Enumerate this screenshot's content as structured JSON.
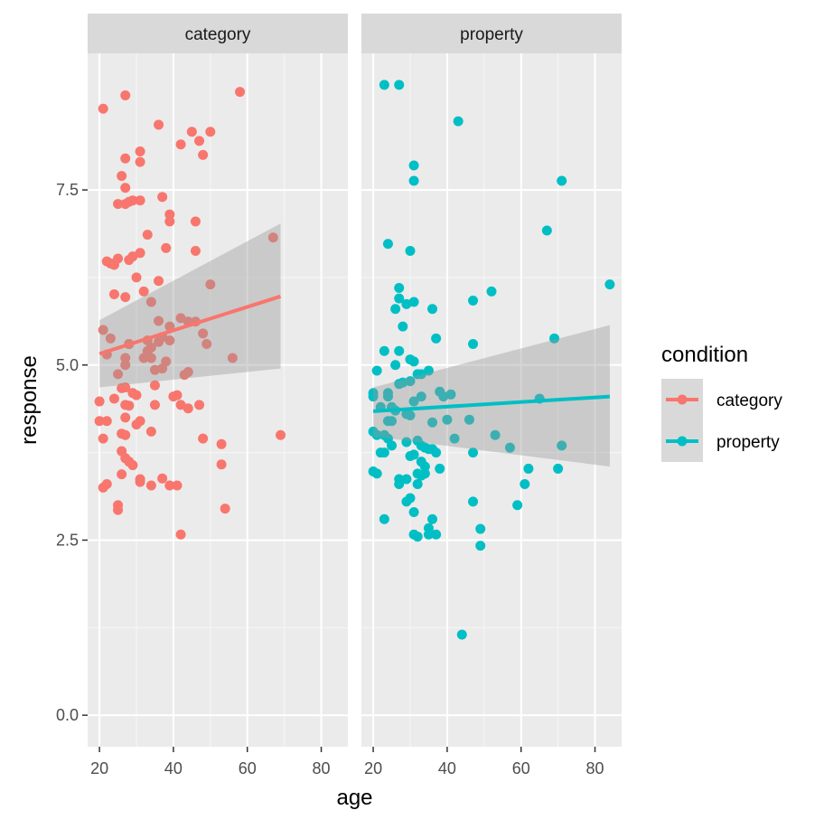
{
  "chart_data": {
    "type": "scatter",
    "title": "",
    "xlabel": "age",
    "ylabel": "response",
    "xlim": [
      16.8,
      87.2
    ],
    "ylim": [
      -0.45,
      9.45
    ],
    "x_ticks": [
      20,
      40,
      60,
      80
    ],
    "x_tick_labels": [
      "20",
      "40",
      "60",
      "80"
    ],
    "y_ticks": [
      0,
      2.5,
      5,
      7.5
    ],
    "y_tick_labels": [
      "0.0",
      "2.5",
      "5.0",
      "7.5"
    ],
    "grid": true,
    "legend": {
      "title": "condition",
      "position": "right"
    },
    "facets": [
      {
        "label": "category",
        "color": "#F8766D",
        "fit": {
          "x": [
            20,
            69
          ],
          "y": [
            5.16,
            5.98
          ],
          "lower": [
            4.68,
            4.95
          ],
          "upper": [
            5.64,
            7.02
          ]
        },
        "points": [
          [
            21,
            8.66
          ],
          [
            27,
            8.85
          ],
          [
            58,
            8.9
          ],
          [
            36,
            8.43
          ],
          [
            45,
            8.33
          ],
          [
            50,
            8.33
          ],
          [
            47,
            8.2
          ],
          [
            42,
            8.15
          ],
          [
            31,
            8.05
          ],
          [
            48,
            8.0
          ],
          [
            31,
            7.9
          ],
          [
            27,
            7.95
          ],
          [
            26,
            7.7
          ],
          [
            27,
            7.53
          ],
          [
            29,
            7.35
          ],
          [
            28,
            7.33
          ],
          [
            31,
            7.35
          ],
          [
            25,
            7.3
          ],
          [
            27,
            7.3
          ],
          [
            37,
            7.4
          ],
          [
            39,
            7.15
          ],
          [
            39,
            7.05
          ],
          [
            46,
            7.05
          ],
          [
            33,
            6.86
          ],
          [
            38,
            6.67
          ],
          [
            46,
            6.63
          ],
          [
            67,
            6.82
          ],
          [
            22,
            6.48
          ],
          [
            23,
            6.45
          ],
          [
            25,
            6.52
          ],
          [
            24,
            6.43
          ],
          [
            28,
            6.5
          ],
          [
            29,
            6.55
          ],
          [
            31,
            6.6
          ],
          [
            30,
            6.25
          ],
          [
            36,
            6.2
          ],
          [
            50,
            6.15
          ],
          [
            32,
            6.05
          ],
          [
            24,
            6.01
          ],
          [
            27,
            5.97
          ],
          [
            34,
            5.9
          ],
          [
            36,
            5.63
          ],
          [
            39,
            5.55
          ],
          [
            42,
            5.67
          ],
          [
            44,
            5.62
          ],
          [
            46,
            5.62
          ],
          [
            48,
            5.45
          ],
          [
            49,
            5.3
          ],
          [
            21,
            5.5
          ],
          [
            23,
            5.38
          ],
          [
            28,
            5.3
          ],
          [
            33,
            5.35
          ],
          [
            34,
            5.25
          ],
          [
            36,
            5.33
          ],
          [
            37,
            5.4
          ],
          [
            39,
            5.35
          ],
          [
            33,
            5.2
          ],
          [
            22,
            5.15
          ],
          [
            27,
            5.1
          ],
          [
            27,
            5.0
          ],
          [
            32,
            5.1
          ],
          [
            34,
            5.1
          ],
          [
            38,
            5.05
          ],
          [
            37,
            4.95
          ],
          [
            35,
            4.93
          ],
          [
            44,
            4.9
          ],
          [
            43,
            4.86
          ],
          [
            25,
            4.87
          ],
          [
            56,
            5.1
          ],
          [
            28,
            5.3
          ],
          [
            27,
            4.68
          ],
          [
            26,
            4.67
          ],
          [
            29,
            4.6
          ],
          [
            35,
            4.71
          ],
          [
            30,
            4.57
          ],
          [
            24,
            4.52
          ],
          [
            20,
            4.48
          ],
          [
            28,
            4.42
          ],
          [
            27,
            4.43
          ],
          [
            35,
            4.43
          ],
          [
            42,
            4.43
          ],
          [
            44,
            4.38
          ],
          [
            47,
            4.43
          ],
          [
            40,
            4.55
          ],
          [
            41,
            4.57
          ],
          [
            27,
            4.25
          ],
          [
            31,
            4.2
          ],
          [
            30,
            4.15
          ],
          [
            22,
            4.2
          ],
          [
            20,
            4.2
          ],
          [
            26,
            4.02
          ],
          [
            27,
            4.0
          ],
          [
            34,
            4.05
          ],
          [
            69,
            4.0
          ],
          [
            48,
            3.95
          ],
          [
            21,
            3.95
          ],
          [
            53,
            3.87
          ],
          [
            26,
            3.77
          ],
          [
            27,
            3.67
          ],
          [
            28,
            3.62
          ],
          [
            29,
            3.57
          ],
          [
            53,
            3.58
          ],
          [
            26,
            3.44
          ],
          [
            31,
            3.37
          ],
          [
            31,
            3.33
          ],
          [
            37,
            3.38
          ],
          [
            34,
            3.28
          ],
          [
            39,
            3.28
          ],
          [
            41,
            3.28
          ],
          [
            22,
            3.3
          ],
          [
            21,
            3.25
          ],
          [
            25,
            3.0
          ],
          [
            25,
            2.93
          ],
          [
            54,
            2.95
          ],
          [
            42,
            2.58
          ]
        ]
      },
      {
        "label": "property",
        "color": "#00BFC4",
        "fit": {
          "x": [
            20,
            84
          ],
          "y": [
            4.34,
            4.55
          ],
          "lower": [
            3.98,
            3.55
          ],
          "upper": [
            4.68,
            5.57
          ]
        },
        "points": [
          [
            23,
            9.0
          ],
          [
            27,
            9.0
          ],
          [
            43,
            8.48
          ],
          [
            31,
            7.85
          ],
          [
            31,
            7.63
          ],
          [
            71,
            7.63
          ],
          [
            24,
            6.73
          ],
          [
            67,
            6.92
          ],
          [
            30,
            6.63
          ],
          [
            84,
            6.15
          ],
          [
            27,
            6.1
          ],
          [
            52,
            6.05
          ],
          [
            27,
            5.95
          ],
          [
            31,
            5.9
          ],
          [
            29,
            5.87
          ],
          [
            47,
            5.92
          ],
          [
            26,
            5.8
          ],
          [
            36,
            5.8
          ],
          [
            28,
            5.55
          ],
          [
            37,
            5.38
          ],
          [
            69,
            5.38
          ],
          [
            47,
            5.3
          ],
          [
            27,
            5.2
          ],
          [
            23,
            5.2
          ],
          [
            30,
            5.08
          ],
          [
            31,
            5.05
          ],
          [
            26,
            5.0
          ],
          [
            35,
            4.92
          ],
          [
            21,
            4.92
          ],
          [
            33,
            4.87
          ],
          [
            32,
            4.87
          ],
          [
            30,
            4.77
          ],
          [
            28,
            4.75
          ],
          [
            27,
            4.73
          ],
          [
            24,
            4.6
          ],
          [
            20,
            4.6
          ],
          [
            20,
            4.55
          ],
          [
            24,
            4.55
          ],
          [
            31,
            4.48
          ],
          [
            33,
            4.55
          ],
          [
            38,
            4.62
          ],
          [
            41,
            4.58
          ],
          [
            39,
            4.55
          ],
          [
            65,
            4.52
          ],
          [
            22,
            4.4
          ],
          [
            25,
            4.4
          ],
          [
            26,
            4.35
          ],
          [
            29,
            4.3
          ],
          [
            30,
            4.28
          ],
          [
            36,
            4.18
          ],
          [
            40,
            4.22
          ],
          [
            46,
            4.22
          ],
          [
            25,
            4.2
          ],
          [
            24,
            4.2
          ],
          [
            20,
            4.05
          ],
          [
            21,
            4.0
          ],
          [
            23,
            4.0
          ],
          [
            25,
            3.85
          ],
          [
            24,
            3.95
          ],
          [
            29,
            3.9
          ],
          [
            32,
            3.92
          ],
          [
            42,
            3.95
          ],
          [
            53,
            4.0
          ],
          [
            33,
            3.85
          ],
          [
            35,
            3.8
          ],
          [
            34,
            3.82
          ],
          [
            36,
            3.8
          ],
          [
            37,
            3.75
          ],
          [
            47,
            3.75
          ],
          [
            57,
            3.82
          ],
          [
            71,
            3.85
          ],
          [
            22,
            3.75
          ],
          [
            23,
            3.75
          ],
          [
            30,
            3.7
          ],
          [
            31,
            3.72
          ],
          [
            33,
            3.62
          ],
          [
            34,
            3.55
          ],
          [
            38,
            3.52
          ],
          [
            62,
            3.52
          ],
          [
            70,
            3.52
          ],
          [
            20,
            3.48
          ],
          [
            21,
            3.45
          ],
          [
            32,
            3.45
          ],
          [
            33,
            3.42
          ],
          [
            34,
            3.45
          ],
          [
            27,
            3.37
          ],
          [
            29,
            3.37
          ],
          [
            32,
            3.3
          ],
          [
            27,
            3.3
          ],
          [
            61,
            3.3
          ],
          [
            30,
            3.1
          ],
          [
            29,
            3.05
          ],
          [
            47,
            3.05
          ],
          [
            31,
            2.9
          ],
          [
            59,
            3.0
          ],
          [
            23,
            2.8
          ],
          [
            36,
            2.8
          ],
          [
            35,
            2.67
          ],
          [
            49,
            2.66
          ],
          [
            31,
            2.58
          ],
          [
            32,
            2.55
          ],
          [
            37,
            2.58
          ],
          [
            35,
            2.58
          ],
          [
            49,
            2.42
          ],
          [
            44,
            1.15
          ]
        ]
      }
    ]
  }
}
